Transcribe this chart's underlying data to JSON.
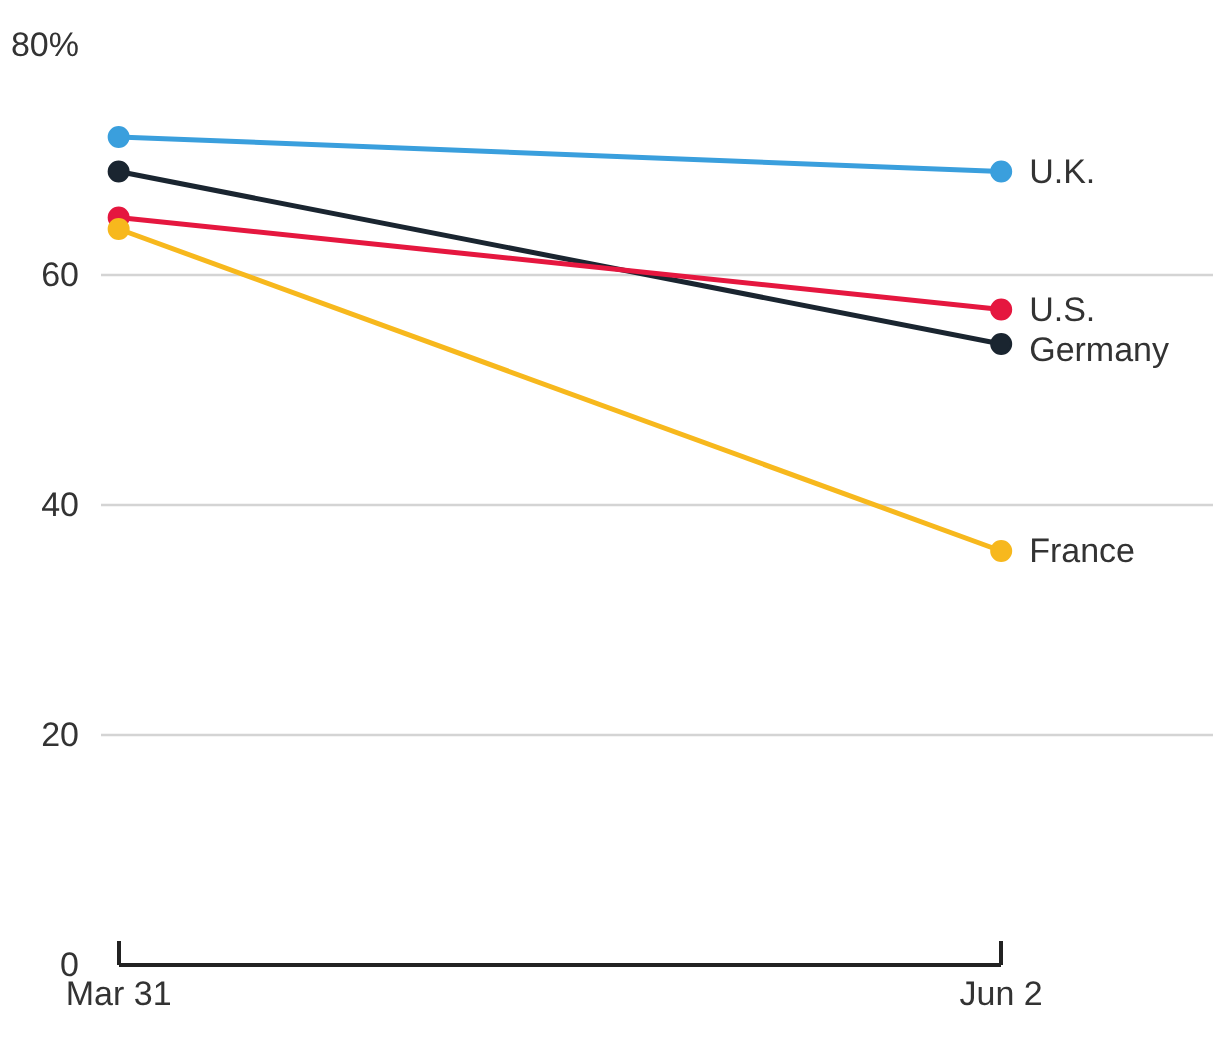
{
  "chart_data": {
    "type": "line",
    "categories": [
      "Mar 31",
      "Jun 2"
    ],
    "series": [
      {
        "name": "U.K.",
        "color": "#3a9fdd",
        "values": [
          72,
          69
        ]
      },
      {
        "name": "Germany",
        "color": "#1a2530",
        "values": [
          69,
          54
        ]
      },
      {
        "name": "U.S.",
        "color": "#e5173f",
        "values": [
          65,
          57
        ]
      },
      {
        "name": "France",
        "color": "#f7b81d",
        "values": [
          64,
          36
        ]
      }
    ],
    "ylim": [
      0,
      80
    ],
    "yticks": [
      0,
      20,
      40,
      60,
      {
        "value": 80,
        "label": "80%"
      }
    ],
    "grid": "y",
    "marker": "circle"
  }
}
